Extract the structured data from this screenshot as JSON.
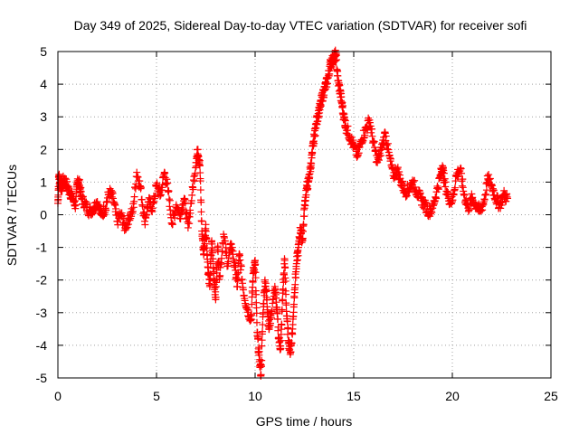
{
  "chart_data": {
    "type": "scatter",
    "title": "Day 349 of 2025, Sidereal Day-to-day VTEC variation (SDTVAR) for receiver sofi",
    "xlabel": "GPS time / hours",
    "ylabel": "SDTVAR / TECUs",
    "xlim": [
      0,
      25
    ],
    "ylim": [
      -5,
      5
    ],
    "grid": true,
    "marker": "plus",
    "colors": {
      "series": "#ff0000",
      "axis": "#000000",
      "grid": "#a0a0a0"
    },
    "xticks": [
      "0",
      "5",
      "10",
      "15",
      "20",
      "25"
    ],
    "yticks": [
      "5",
      "4",
      "3",
      "2",
      "1",
      "0",
      "-1",
      "-2",
      "-3",
      "-4",
      "-5"
    ],
    "series": [
      {
        "name": "SDTVAR",
        "points": [
          [
            0.0,
            0.35
          ],
          [
            0.05,
            1.2
          ],
          [
            0.1,
            1.0
          ],
          [
            0.2,
            0.8
          ],
          [
            0.3,
            1.1
          ],
          [
            0.45,
            0.9
          ],
          [
            0.6,
            0.7
          ],
          [
            0.75,
            0.5
          ],
          [
            0.9,
            0.3
          ],
          [
            1.0,
            1.1
          ],
          [
            1.1,
            0.9
          ],
          [
            1.2,
            0.5
          ],
          [
            1.4,
            0.3
          ],
          [
            1.6,
            0.1
          ],
          [
            1.8,
            0.2
          ],
          [
            2.0,
            0.4
          ],
          [
            2.2,
            0.0
          ],
          [
            2.4,
            0.2
          ],
          [
            2.6,
            0.7
          ],
          [
            2.8,
            0.5
          ],
          [
            3.0,
            -0.2
          ],
          [
            3.2,
            0.0
          ],
          [
            3.4,
            -0.4
          ],
          [
            3.6,
            -0.1
          ],
          [
            3.8,
            0.1
          ],
          [
            4.0,
            1.3
          ],
          [
            4.2,
            0.8
          ],
          [
            4.4,
            -0.2
          ],
          [
            4.6,
            0.4
          ],
          [
            4.8,
            0.2
          ],
          [
            5.0,
            0.9
          ],
          [
            5.2,
            0.6
          ],
          [
            5.4,
            1.3
          ],
          [
            5.6,
            0.7
          ],
          [
            5.8,
            -0.3
          ],
          [
            6.0,
            0.3
          ],
          [
            6.2,
            0.0
          ],
          [
            6.4,
            0.5
          ],
          [
            6.6,
            -0.4
          ],
          [
            6.8,
            0.6
          ],
          [
            7.0,
            1.6
          ],
          [
            7.1,
            2.0
          ],
          [
            7.2,
            1.5
          ],
          [
            7.3,
            -0.5
          ],
          [
            7.4,
            -1.2
          ],
          [
            7.5,
            -0.3
          ],
          [
            7.6,
            -1.6
          ],
          [
            7.7,
            -2.2
          ],
          [
            7.8,
            -0.8
          ],
          [
            7.9,
            -1.8
          ],
          [
            8.0,
            -2.6
          ],
          [
            8.1,
            -1.0
          ],
          [
            8.2,
            -1.9
          ],
          [
            8.4,
            -0.6
          ],
          [
            8.6,
            -1.5
          ],
          [
            8.8,
            -0.9
          ],
          [
            9.0,
            -1.7
          ],
          [
            9.1,
            -2.2
          ],
          [
            9.2,
            -1.2
          ],
          [
            9.4,
            -2.3
          ],
          [
            9.6,
            -2.9
          ],
          [
            9.8,
            -3.2
          ],
          [
            9.9,
            -1.8
          ],
          [
            10.0,
            -1.4
          ],
          [
            10.1,
            -3.6
          ],
          [
            10.2,
            -4.3
          ],
          [
            10.3,
            -4.9
          ],
          [
            10.4,
            -3.0
          ],
          [
            10.5,
            -2.0
          ],
          [
            10.6,
            -2.6
          ],
          [
            10.7,
            -3.5
          ],
          [
            10.8,
            -3.1
          ],
          [
            11.0,
            -2.2
          ],
          [
            11.1,
            -2.9
          ],
          [
            11.2,
            -3.8
          ],
          [
            11.3,
            -4.1
          ],
          [
            11.4,
            -2.4
          ],
          [
            11.5,
            -1.4
          ],
          [
            11.6,
            -3.1
          ],
          [
            11.7,
            -3.9
          ],
          [
            11.8,
            -4.2
          ],
          [
            11.9,
            -3.5
          ],
          [
            12.0,
            -2.3
          ],
          [
            12.1,
            -1.5
          ],
          [
            12.2,
            -1.0
          ],
          [
            12.3,
            -0.4
          ],
          [
            12.4,
            -0.8
          ],
          [
            12.5,
            0.2
          ],
          [
            12.6,
            0.8
          ],
          [
            12.7,
            1.0
          ],
          [
            12.8,
            1.4
          ],
          [
            12.9,
            1.9
          ],
          [
            13.0,
            2.4
          ],
          [
            13.1,
            2.8
          ],
          [
            13.2,
            3.1
          ],
          [
            13.3,
            3.3
          ],
          [
            13.4,
            3.6
          ],
          [
            13.5,
            3.8
          ],
          [
            13.6,
            4.0
          ],
          [
            13.7,
            4.2
          ],
          [
            13.8,
            4.6
          ],
          [
            13.9,
            4.7
          ],
          [
            14.0,
            4.8
          ],
          [
            14.1,
            4.9
          ],
          [
            14.2,
            4.1
          ],
          [
            14.3,
            3.8
          ],
          [
            14.4,
            3.4
          ],
          [
            14.5,
            3.0
          ],
          [
            14.6,
            2.7
          ],
          [
            14.8,
            2.4
          ],
          [
            15.0,
            2.1
          ],
          [
            15.2,
            1.8
          ],
          [
            15.4,
            2.3
          ],
          [
            15.6,
            2.6
          ],
          [
            15.8,
            2.9
          ],
          [
            16.0,
            2.2
          ],
          [
            16.2,
            1.6
          ],
          [
            16.4,
            2.0
          ],
          [
            16.6,
            2.5
          ],
          [
            16.8,
            1.8
          ],
          [
            17.0,
            1.2
          ],
          [
            17.2,
            1.4
          ],
          [
            17.4,
            1.0
          ],
          [
            17.6,
            0.7
          ],
          [
            17.8,
            0.8
          ],
          [
            18.0,
            1.0
          ],
          [
            18.2,
            0.7
          ],
          [
            18.4,
            0.5
          ],
          [
            18.6,
            0.3
          ],
          [
            18.8,
            0.1
          ],
          [
            19.0,
            0.2
          ],
          [
            19.2,
            0.7
          ],
          [
            19.4,
            1.2
          ],
          [
            19.5,
            1.5
          ],
          [
            19.6,
            1.0
          ],
          [
            19.8,
            0.5
          ],
          [
            20.0,
            0.4
          ],
          [
            20.2,
            1.2
          ],
          [
            20.4,
            1.4
          ],
          [
            20.6,
            0.6
          ],
          [
            20.8,
            0.2
          ],
          [
            21.0,
            0.5
          ],
          [
            21.2,
            0.3
          ],
          [
            21.4,
            0.1
          ],
          [
            21.6,
            0.4
          ],
          [
            21.8,
            1.1
          ],
          [
            22.0,
            0.9
          ],
          [
            22.2,
            0.5
          ],
          [
            22.4,
            0.3
          ],
          [
            22.6,
            0.6
          ],
          [
            22.8,
            0.5
          ]
        ]
      }
    ]
  }
}
